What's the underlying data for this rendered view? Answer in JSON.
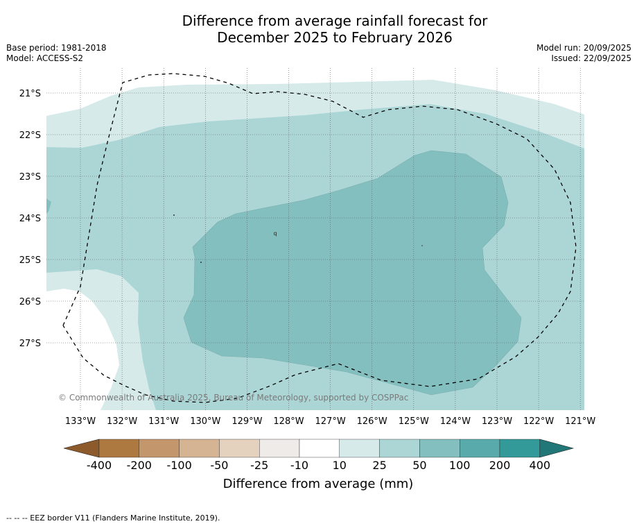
{
  "title": {
    "line1": "Difference from average rainfall forecast for",
    "line2": "December 2025 to February 2026"
  },
  "meta": {
    "base_period": "Base period: 1981-2018",
    "model": "Model: ACCESS-S2",
    "model_run": "Model run: 20/09/2025",
    "issued": "Issued: 22/09/2025"
  },
  "map": {
    "lat_labels": [
      "21°S",
      "22°S",
      "23°S",
      "24°S",
      "25°S",
      "26°S",
      "27°S"
    ],
    "lon_labels": [
      "133°W",
      "132°W",
      "131°W",
      "130°W",
      "129°W",
      "128°W",
      "127°W",
      "126°W",
      "125°W",
      "124°W",
      "123°W",
      "122°W",
      "121°W"
    ],
    "copyright": "© Commonwealth of Australia 2025, Bureau of Meteorology, supported by COSPPac",
    "island_label": "q"
  },
  "colorbar": {
    "title": "Difference from average (mm)",
    "ticks": [
      "-400",
      "-200",
      "-100",
      "-50",
      "-25",
      "-10",
      "10",
      "25",
      "50",
      "100",
      "200",
      "400"
    ],
    "colors": [
      "#8c5a2b",
      "#ae7941",
      "#c4966b",
      "#d4b493",
      "#e4d2be",
      "#eeebe8",
      "#ffffff",
      "#d6eaea",
      "#acd6d6",
      "#84bfbf",
      "#59abab",
      "#339999",
      "#217777"
    ]
  },
  "legend": {
    "eez": "--  --  -- EEZ border V11 (Flanders Marine Institute, 2019)."
  }
}
